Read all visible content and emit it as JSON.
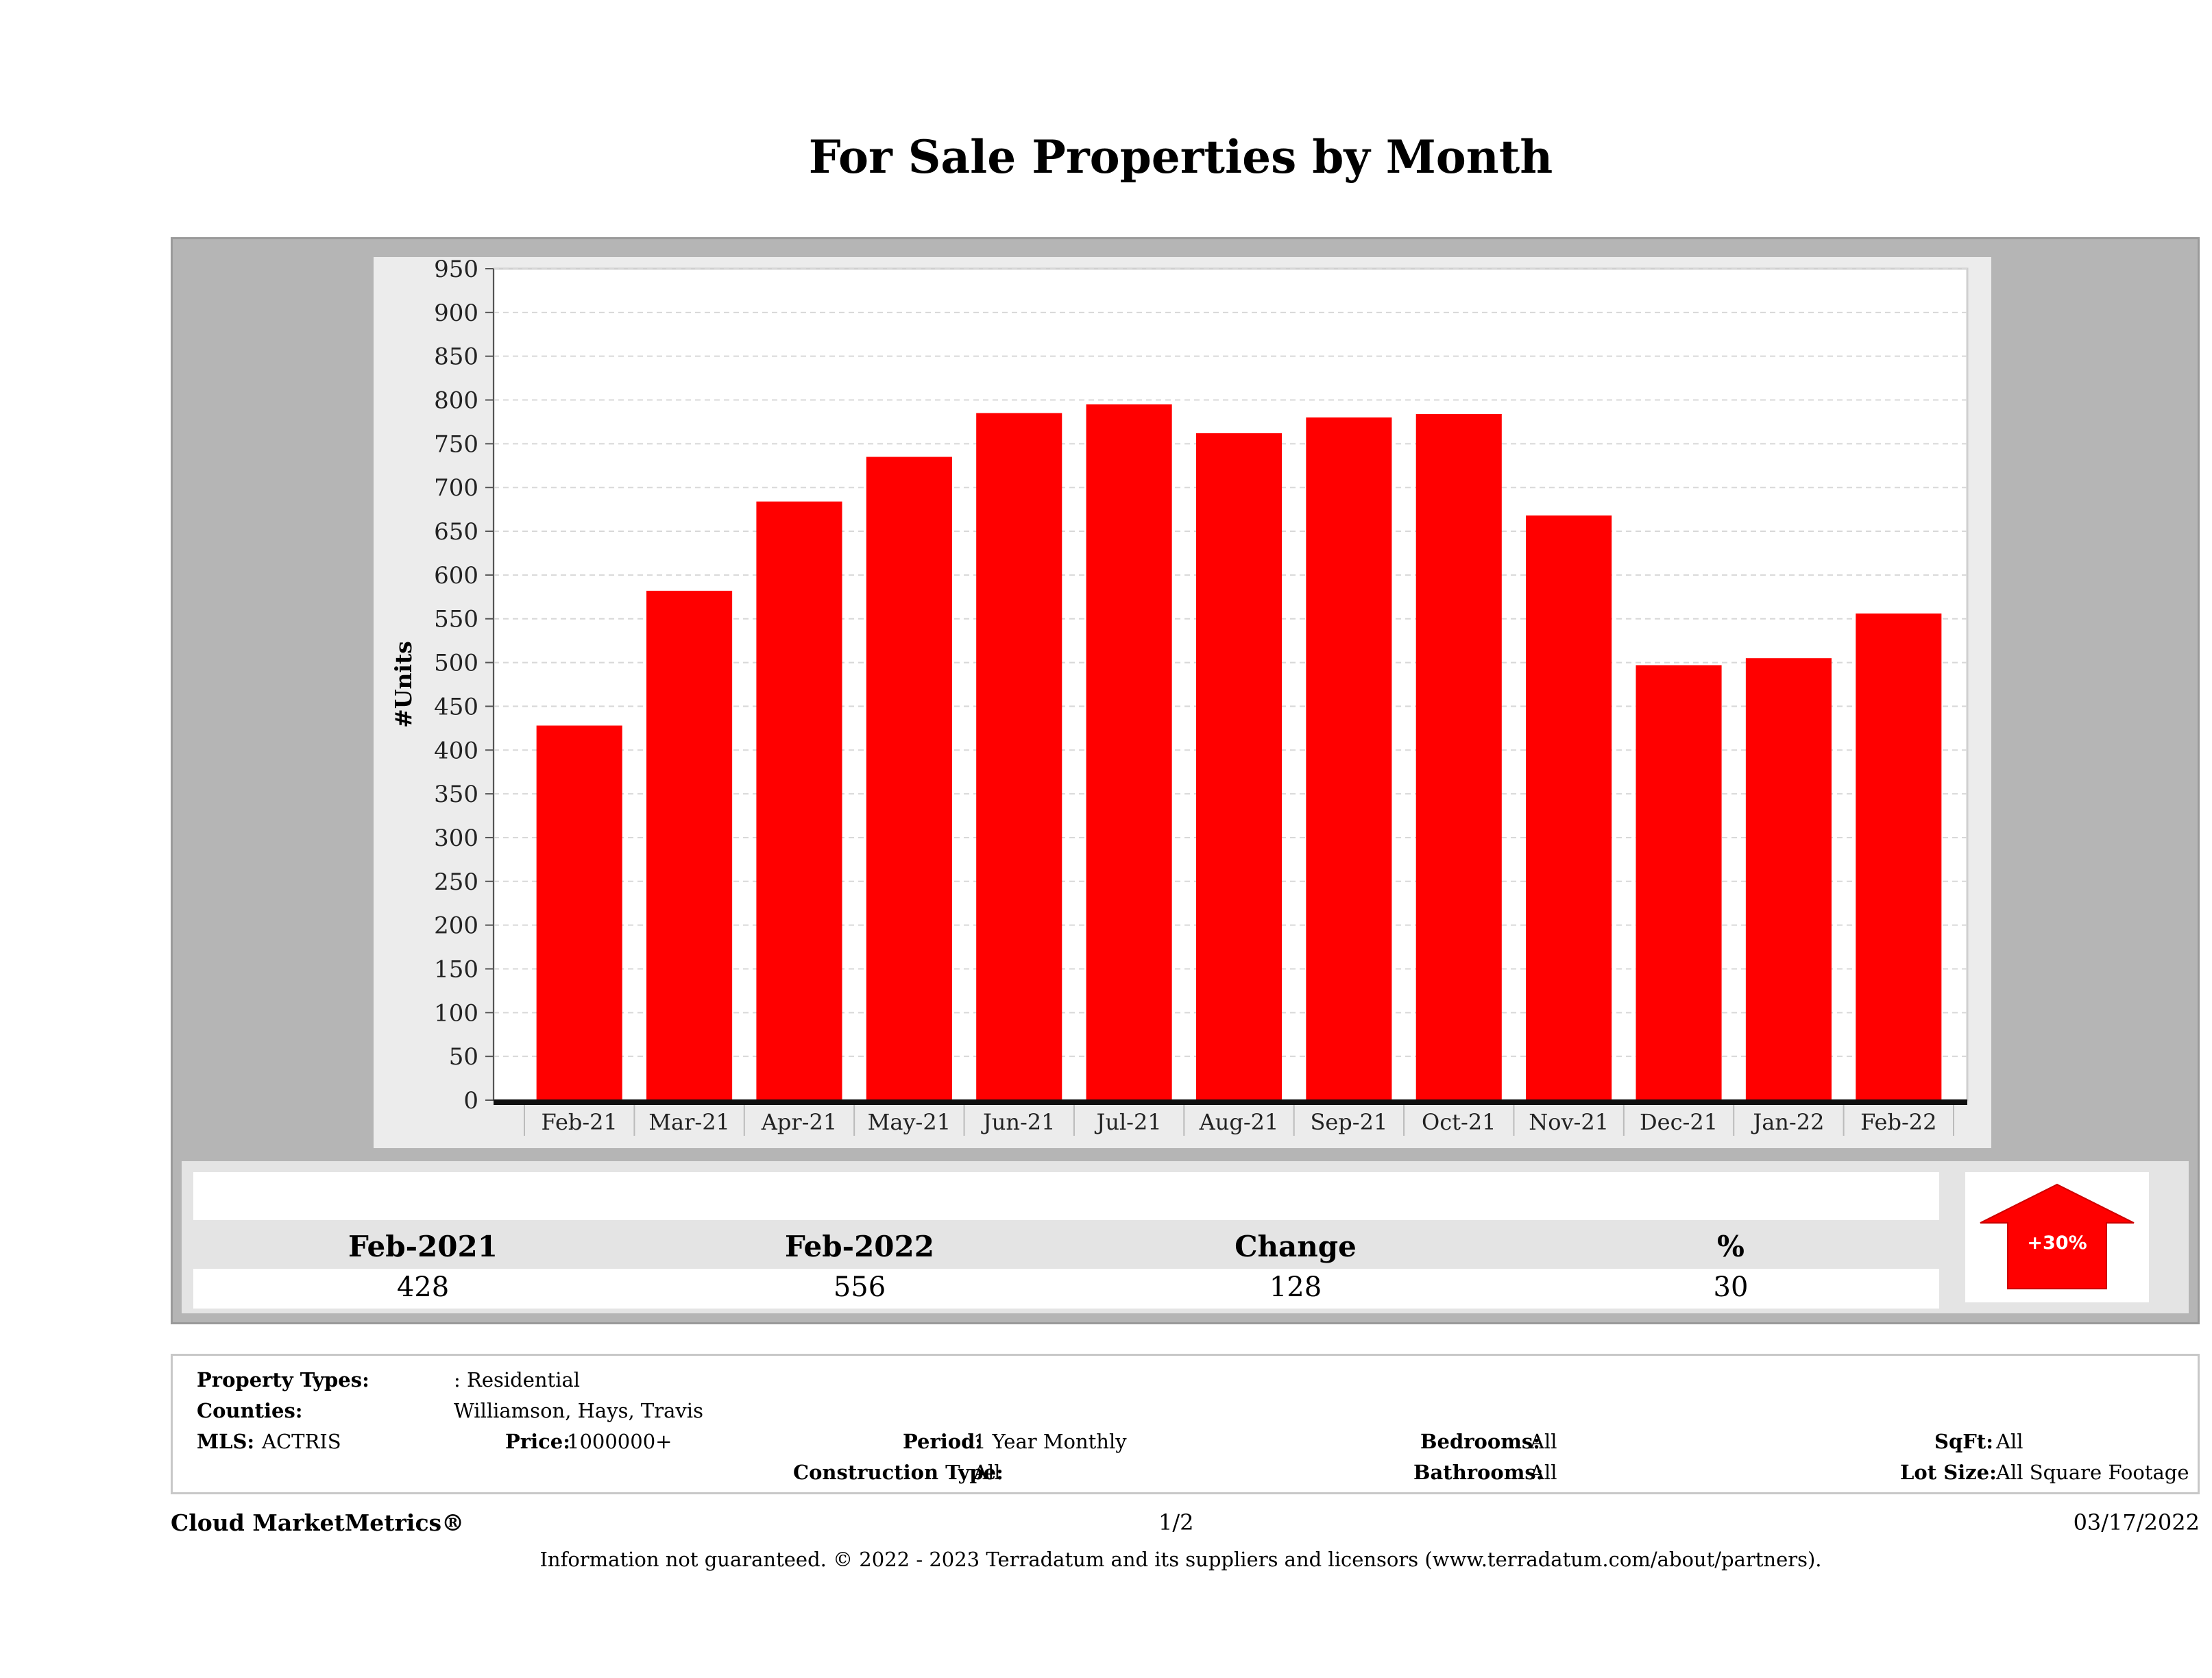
{
  "title": "For Sale Properties by Month",
  "chart_data": {
    "type": "bar",
    "title": "For Sale Properties by Month",
    "ylabel": "#Units",
    "xlabel": "",
    "categories": [
      "Feb-21",
      "Mar-21",
      "Apr-21",
      "May-21",
      "Jun-21",
      "Jul-21",
      "Aug-21",
      "Sep-21",
      "Oct-21",
      "Nov-21",
      "Dec-21",
      "Jan-22",
      "Feb-22"
    ],
    "values": [
      428,
      582,
      684,
      735,
      785,
      795,
      762,
      780,
      784,
      668,
      497,
      505,
      556
    ],
    "ylim": [
      0,
      950
    ],
    "yticks": [
      "0",
      "50",
      "100",
      "150",
      "200",
      "250",
      "300",
      "350",
      "400",
      "450",
      "500",
      "550",
      "600",
      "650",
      "700",
      "750",
      "800",
      "850",
      "900",
      "950"
    ],
    "bar_color": "#ff0000",
    "grid": true
  },
  "summary": {
    "labels": [
      "Feb-2021",
      "Feb-2022",
      "Change",
      "%"
    ],
    "values": [
      "428",
      "556",
      "128",
      "30"
    ],
    "badge": "+30%",
    "badge_color": "#ff0000"
  },
  "filters": {
    "property_types_label": "Property Types:",
    "property_types_value": ": Residential",
    "counties_label": "Counties:",
    "counties_value": "Williamson, Hays, Travis",
    "mls_label": "MLS:",
    "mls_value": "ACTRIS",
    "price_label": "Price:",
    "price_value": "1000000+",
    "period_label": "Period:",
    "period_value": "1 Year Monthly",
    "construction_label": "Construction Type:",
    "construction_value": "All",
    "bedrooms_label": "Bedrooms:",
    "bedrooms_value": "All",
    "bathrooms_label": "Bathrooms:",
    "bathrooms_value": "All",
    "sqft_label": "SqFt:",
    "sqft_value": "All",
    "lotsize_label": "Lot Size:",
    "lotsize_value": "All Square Footage"
  },
  "footer": {
    "brand": "Cloud MarketMetrics®",
    "page": "1/2",
    "date": "03/17/2022",
    "disclaimer": "Information not guaranteed. © 2022 - 2023 Terradatum and its suppliers and licensors (www.terradatum.com/about/partners)."
  }
}
